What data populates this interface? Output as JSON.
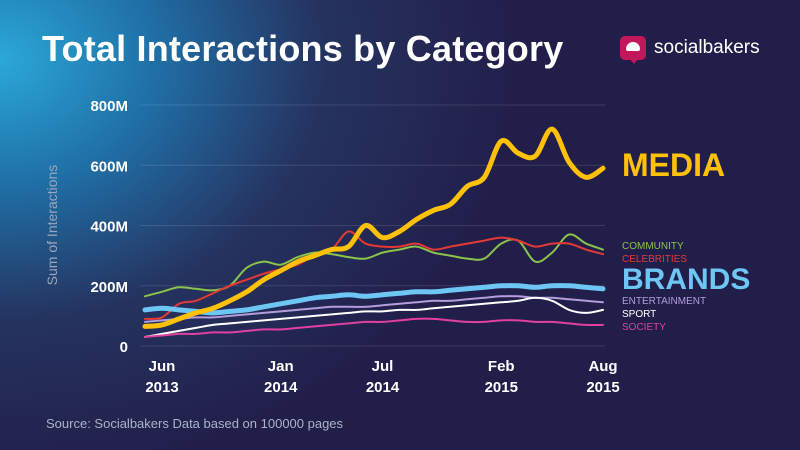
{
  "header": {
    "title": "Total Interactions by Category",
    "brand": "socialbakers"
  },
  "footer": {
    "source": "Source: Socialbakers Data based on 100000 pages"
  },
  "chart_data": {
    "type": "line",
    "title": "Total Interactions by Category",
    "ylabel": "Sum of Interactions",
    "xlabel": "",
    "ylim": [
      0,
      800
    ],
    "y_unit": "M",
    "y_ticks": [
      0,
      200,
      400,
      600,
      800
    ],
    "y_tick_labels": [
      "0",
      "200M",
      "400M",
      "600M",
      "800M"
    ],
    "grid": true,
    "x_tick_labels": [
      {
        "month": "Jun",
        "year": "2013",
        "index": 0
      },
      {
        "month": "Jan",
        "year": "2014",
        "index": 7
      },
      {
        "month": "Jul",
        "year": "2014",
        "index": 13
      },
      {
        "month": "Feb",
        "year": "2015",
        "index": 20
      },
      {
        "month": "Aug",
        "year": "2015",
        "index": 26
      }
    ],
    "x": [
      "2013-06",
      "2013-07",
      "2013-08",
      "2013-09",
      "2013-10",
      "2013-11",
      "2013-12",
      "2014-01",
      "2014-02",
      "2014-03",
      "2014-04",
      "2014-05",
      "2014-06",
      "2014-07",
      "2014-08",
      "2014-09",
      "2014-10",
      "2014-11",
      "2014-12",
      "2015-01",
      "2015-02",
      "2015-03",
      "2015-04",
      "2015-05",
      "2015-06",
      "2015-07",
      "2015-08",
      "2015-09"
    ],
    "series": [
      {
        "name": "COMMUNITY",
        "color": "#8bc34a",
        "width": 2,
        "values": [
          165,
          180,
          195,
          190,
          185,
          200,
          260,
          280,
          270,
          295,
          310,
          305,
          295,
          290,
          310,
          320,
          330,
          310,
          300,
          290,
          290,
          340,
          350,
          280,
          310,
          370,
          340,
          320
        ]
      },
      {
        "name": "CELEBRITIES",
        "color": "#e53935",
        "width": 2,
        "values": [
          90,
          95,
          140,
          150,
          175,
          200,
          220,
          240,
          255,
          270,
          300,
          320,
          380,
          340,
          330,
          330,
          340,
          320,
          330,
          340,
          350,
          360,
          350,
          330,
          340,
          340,
          320,
          305
        ]
      },
      {
        "name": "BRANDS",
        "color": "#6ec6f5",
        "width": 5,
        "values": [
          120,
          125,
          120,
          115,
          110,
          115,
          120,
          130,
          140,
          150,
          160,
          165,
          170,
          165,
          170,
          175,
          180,
          180,
          185,
          190,
          195,
          200,
          200,
          195,
          200,
          200,
          195,
          190
        ]
      },
      {
        "name": "ENTERTAINMENT",
        "color": "#b39ddb",
        "width": 2,
        "values": [
          80,
          85,
          90,
          95,
          95,
          100,
          105,
          110,
          115,
          120,
          125,
          130,
          130,
          130,
          135,
          140,
          145,
          150,
          150,
          155,
          160,
          165,
          165,
          160,
          160,
          155,
          150,
          145
        ]
      },
      {
        "name": "SPORT",
        "color": "#ffffff",
        "width": 2,
        "values": [
          30,
          40,
          50,
          60,
          70,
          75,
          80,
          85,
          90,
          95,
          100,
          105,
          110,
          115,
          115,
          120,
          120,
          125,
          130,
          135,
          140,
          145,
          150,
          160,
          150,
          120,
          110,
          120
        ]
      },
      {
        "name": "SOCIETY",
        "color": "#e040a0",
        "width": 2,
        "values": [
          30,
          35,
          40,
          40,
          45,
          45,
          50,
          55,
          55,
          60,
          65,
          70,
          75,
          80,
          80,
          85,
          90,
          90,
          85,
          80,
          80,
          85,
          85,
          80,
          80,
          75,
          70,
          70
        ]
      },
      {
        "name": "MEDIA",
        "color": "#ffc107",
        "width": 5,
        "values": [
          65,
          70,
          90,
          110,
          125,
          150,
          180,
          220,
          250,
          280,
          300,
          320,
          330,
          400,
          360,
          380,
          420,
          450,
          470,
          530,
          560,
          680,
          640,
          630,
          720,
          610,
          560,
          590
        ]
      }
    ]
  }
}
